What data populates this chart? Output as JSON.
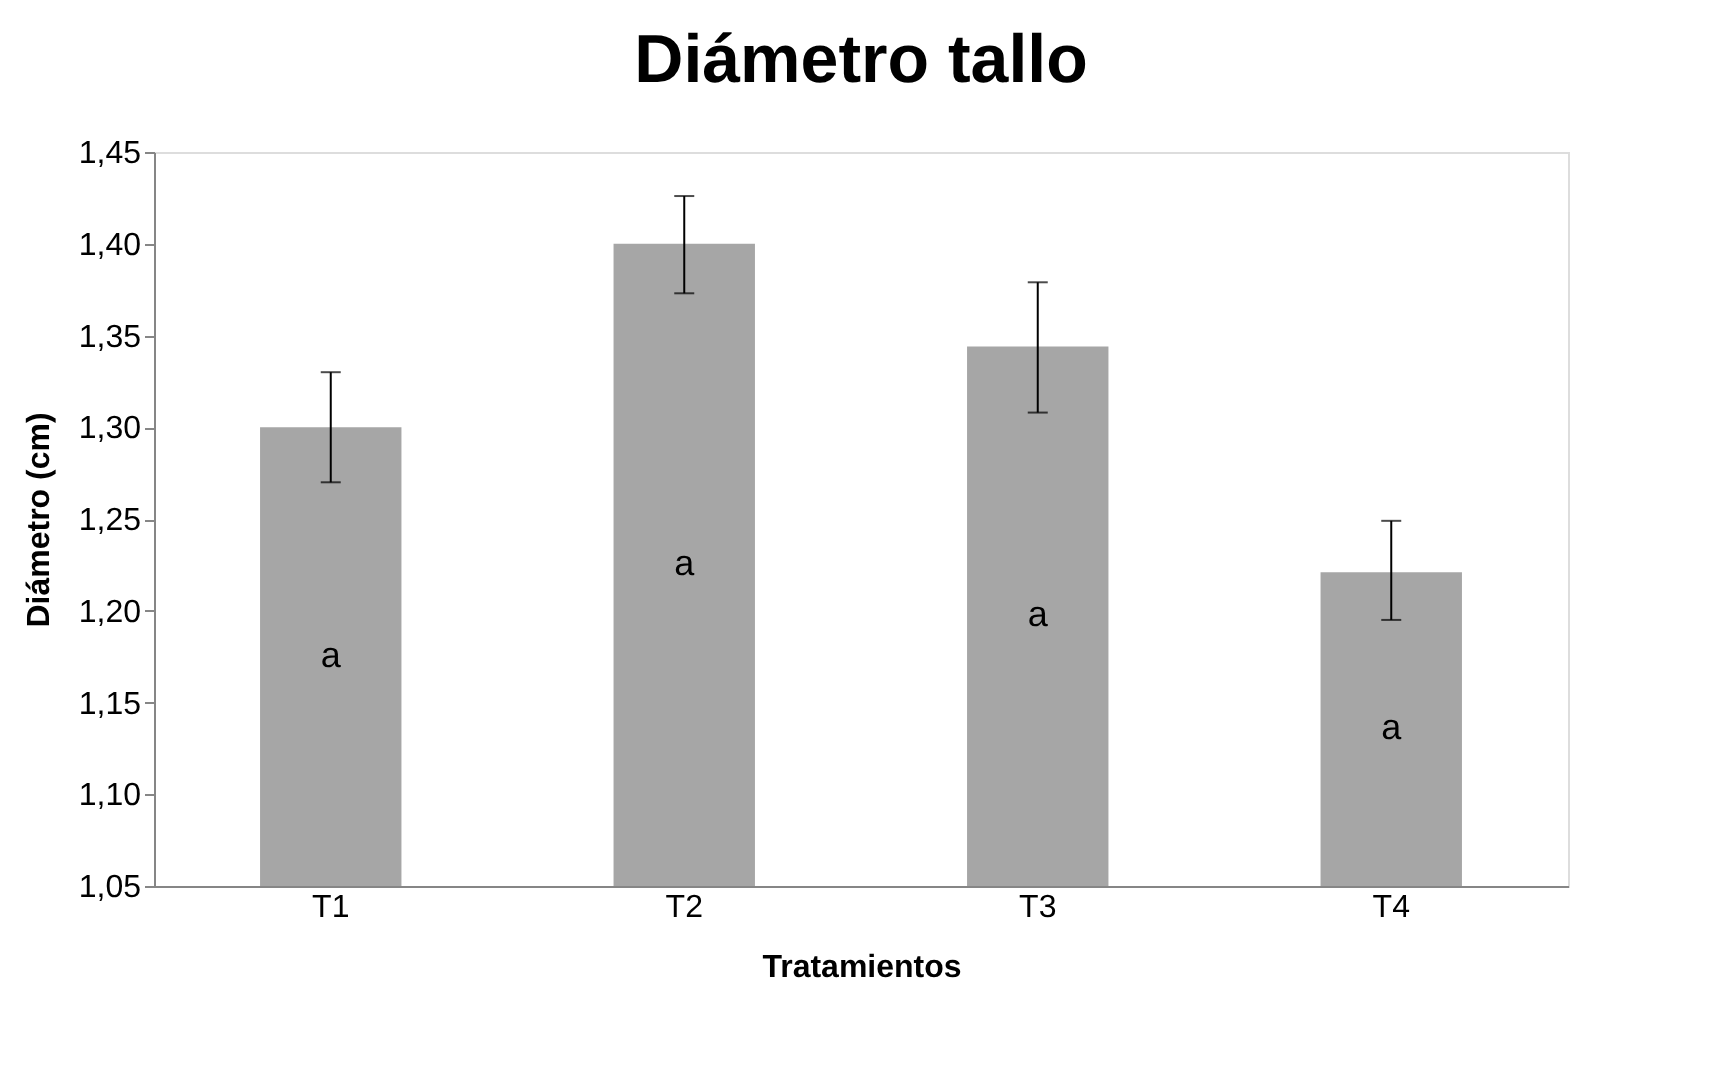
{
  "chart_data": {
    "type": "bar",
    "title": "Diámetro tallo",
    "xlabel": "Tratamientos",
    "ylabel": "Diámetro (cm)",
    "categories": [
      "T1",
      "T2",
      "T3",
      "T4"
    ],
    "values": [
      1.3,
      1.4,
      1.344,
      1.221
    ],
    "errors": [
      [
        1.27,
        1.33
      ],
      [
        1.373,
        1.426
      ],
      [
        1.308,
        1.379
      ],
      [
        1.195,
        1.249
      ]
    ],
    "color": "#a6a6a6",
    "ylim": [
      1.05,
      1.45
    ],
    "yticks": [
      {
        "value": 1.05,
        "label": "1,05"
      },
      {
        "value": 1.1,
        "label": "1,10"
      },
      {
        "value": 1.15,
        "label": "1,15"
      },
      {
        "value": 1.2,
        "label": "1,20"
      },
      {
        "value": 1.25,
        "label": "1,25"
      },
      {
        "value": 1.3,
        "label": "1,30"
      },
      {
        "value": 1.35,
        "label": "1,35"
      },
      {
        "value": 1.4,
        "label": "1,40"
      },
      {
        "value": 1.45,
        "label": "1,45"
      }
    ],
    "annotations": [
      "a",
      "a",
      "a",
      "a"
    ]
  }
}
